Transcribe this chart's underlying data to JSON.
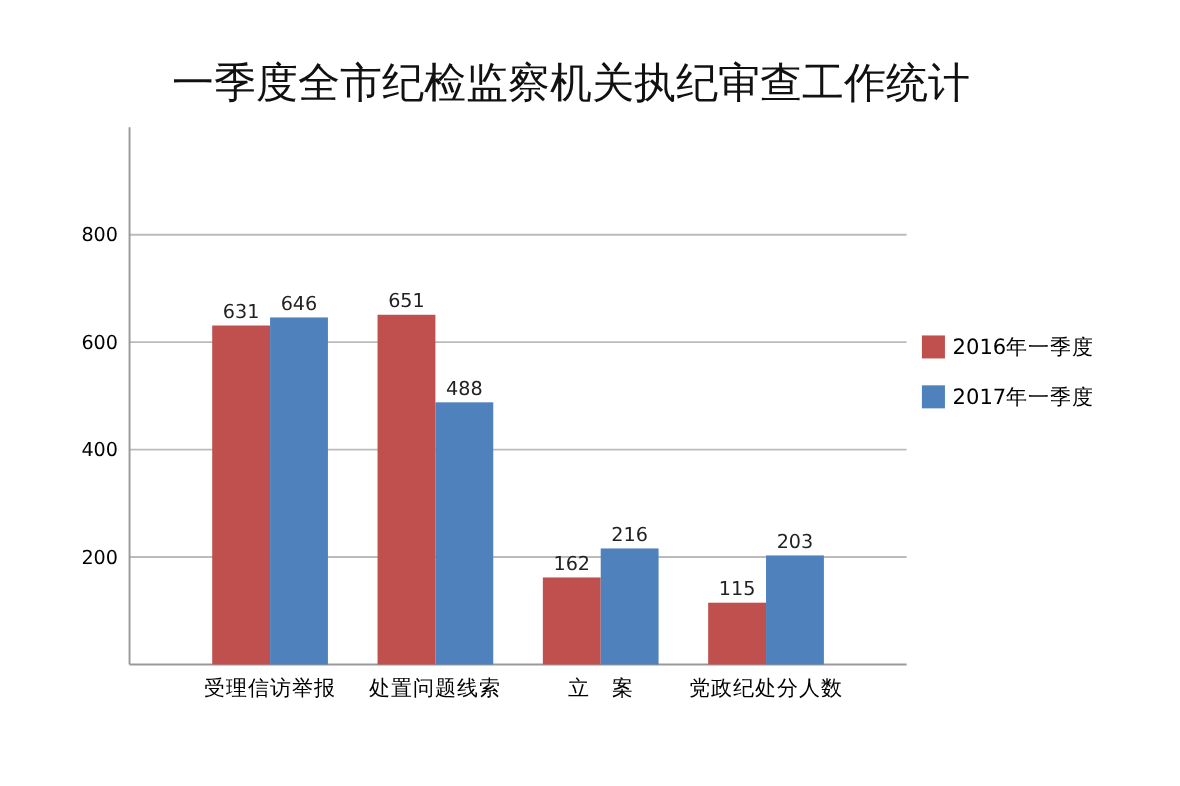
{
  "chart_data": {
    "type": "bar",
    "title": "一季度全市纪检监察机关执纪审查工作统计",
    "categories": [
      "受理信访举报",
      "处置问题线索",
      "立　案",
      "党政纪处分人数"
    ],
    "series": [
      {
        "name": "2016年一季度",
        "color": "#c0504d",
        "values": [
          631,
          651,
          162,
          115
        ]
      },
      {
        "name": "2017年一季度",
        "color": "#4f81bd",
        "values": [
          646,
          488,
          216,
          203
        ]
      }
    ],
    "ylim": [
      0,
      1000
    ],
    "yticks": [
      200,
      400,
      600,
      800
    ],
    "grid": "y",
    "legend": "right",
    "data_labels": true
  }
}
